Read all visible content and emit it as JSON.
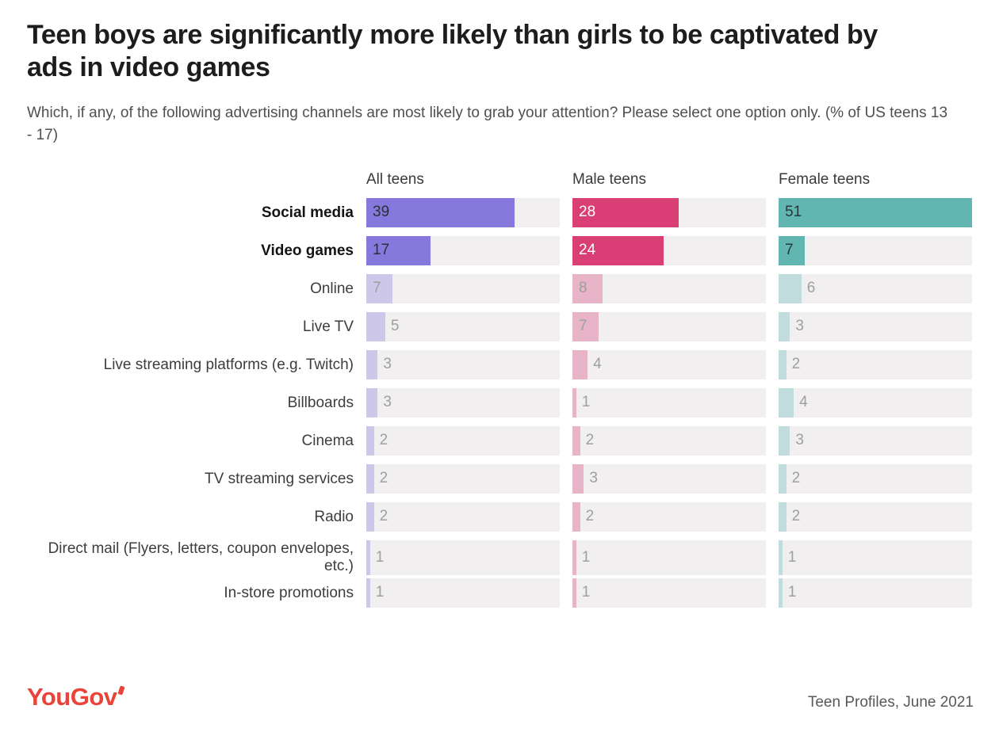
{
  "header": {
    "title": "Teen boys are significantly more likely than girls to be captivated by ads in video games",
    "subtitle": "Which, if any, of the following advertising channels are most likely to grab your attention? Please select one option only. (% of US teens 13 - 17)"
  },
  "chart_data": {
    "type": "bar",
    "orientation": "horizontal",
    "categories": [
      "Social media",
      "Video games",
      "Online",
      "Live TV",
      "Live streaming platforms (e.g. Twitch)",
      "Billboards",
      "Cinema",
      "TV streaming services",
      "Radio",
      "Direct mail (Flyers, letters, coupon envelopes, etc.)",
      "In-store promotions"
    ],
    "bold_categories": [
      "Social media",
      "Video games"
    ],
    "series": [
      {
        "name": "All teens",
        "color": "#8678dd",
        "value_label_color": "#2e2e38",
        "values": [
          39,
          17,
          7,
          5,
          3,
          3,
          2,
          2,
          2,
          1,
          1
        ]
      },
      {
        "name": "Male teens",
        "color": "#d93e74",
        "value_label_color": "#ffffff",
        "values": [
          28,
          24,
          8,
          7,
          4,
          1,
          2,
          3,
          2,
          1,
          1
        ]
      },
      {
        "name": "Female teens",
        "color": "#62b6b2",
        "value_label_color": "#25383a",
        "values": [
          51,
          7,
          6,
          3,
          2,
          4,
          3,
          2,
          2,
          1,
          1
        ]
      }
    ],
    "xlim": [
      0,
      51
    ],
    "highlight_rows": 2,
    "track_color": "#f1eff0",
    "faded_opacity": 0.33,
    "grid": "off",
    "legend_position": "column-headers"
  },
  "footer": {
    "logo": "YouGov",
    "source": "Teen Profiles, June 2021"
  }
}
